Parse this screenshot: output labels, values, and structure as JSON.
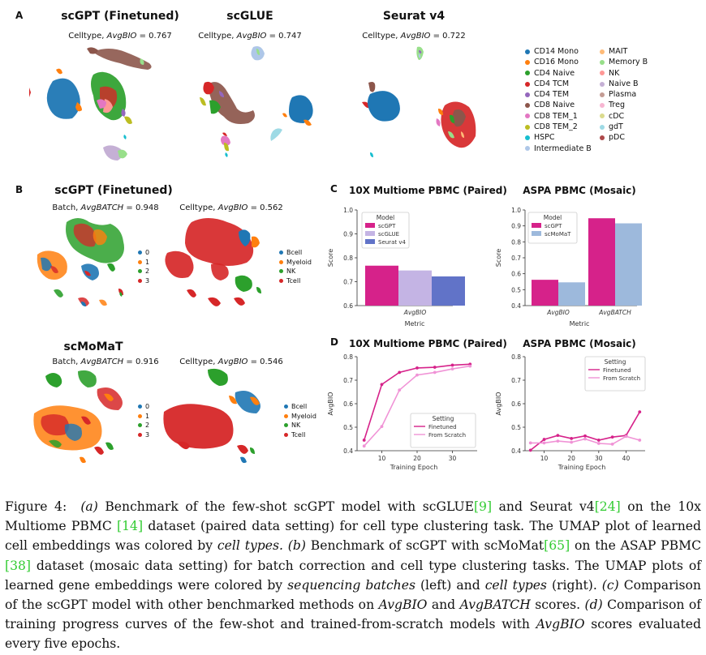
{
  "panel_a": {
    "letter": "A",
    "plots": [
      {
        "title": "scGPT (Finetuned)",
        "metric_prefix": "Celltype, ",
        "metric_name": "AvgBIO",
        "metric_value": " = 0.767"
      },
      {
        "title": "scGLUE",
        "metric_prefix": "Celltype, ",
        "metric_name": "AvgBIO",
        "metric_value": " = 0.747"
      },
      {
        "title": "Seurat v4",
        "metric_prefix": "Celltype, ",
        "metric_name": "AvgBIO",
        "metric_value": " = 0.722"
      }
    ],
    "legend": [
      {
        "label": "CD14 Mono",
        "color": "#1f77b4"
      },
      {
        "label": "CD16 Mono",
        "color": "#ff7f0e"
      },
      {
        "label": "CD4 Naive",
        "color": "#2ca02c"
      },
      {
        "label": "CD4 TCM",
        "color": "#d62728"
      },
      {
        "label": "CD4 TEM",
        "color": "#9467bd"
      },
      {
        "label": "CD8 Naive",
        "color": "#8c564b"
      },
      {
        "label": "CD8 TEM_1",
        "color": "#e377c2"
      },
      {
        "label": "CD8 TEM_2",
        "color": "#bcbd22"
      },
      {
        "label": "HSPC",
        "color": "#17becf"
      },
      {
        "label": "Intermediate B",
        "color": "#aec7e8"
      },
      {
        "label": "MAIT",
        "color": "#ffbb78"
      },
      {
        "label": "Memory B",
        "color": "#98df8a"
      },
      {
        "label": "NK",
        "color": "#ff9896"
      },
      {
        "label": "Naive B",
        "color": "#c5b0d5"
      },
      {
        "label": "Plasma",
        "color": "#c49c94"
      },
      {
        "label": "Treg",
        "color": "#f7b6d2"
      },
      {
        "label": "cDC",
        "color": "#dbdb8d"
      },
      {
        "label": "gdT",
        "color": "#9edae5"
      },
      {
        "label": "pDC",
        "color": "#ad494a"
      }
    ]
  },
  "panel_b": {
    "letter": "B",
    "rows": [
      {
        "title": "scGPT (Finetuned)",
        "left_metric": {
          "prefix": "Batch, ",
          "name": "AvgBATCH",
          "value": " = 0.948"
        },
        "right_metric": {
          "prefix": "Celltype, ",
          "name": "AvgBIO",
          "value": " = 0.562"
        }
      },
      {
        "title": "scMoMaT",
        "left_metric": {
          "prefix": "Batch, ",
          "name": "AvgBATCH",
          "value": " = 0.916"
        },
        "right_metric": {
          "prefix": "Celltype, ",
          "name": "AvgBIO",
          "value": " = 0.546"
        }
      }
    ],
    "batch_legend": [
      {
        "label": "0",
        "color": "#1f77b4"
      },
      {
        "label": "1",
        "color": "#ff7f0e"
      },
      {
        "label": "2",
        "color": "#2ca02c"
      },
      {
        "label": "3",
        "color": "#d62728"
      }
    ],
    "celltype_legend": [
      {
        "label": "Bcell",
        "color": "#1f77b4"
      },
      {
        "label": "Myeloid",
        "color": "#ff7f0e"
      },
      {
        "label": "NK",
        "color": "#2ca02c"
      },
      {
        "label": "Tcell",
        "color": "#d62728"
      }
    ]
  },
  "panel_c": {
    "letter": "C"
  },
  "panel_d": {
    "letter": "D"
  },
  "chart_data": [
    {
      "type": "bar",
      "title": "10X Multiome PBMC (Paired)",
      "categories": [
        "AvgBIO"
      ],
      "series": [
        {
          "name": "scGPT",
          "values": [
            0.767
          ],
          "color": "#d6228a"
        },
        {
          "name": "scGLUE",
          "values": [
            0.747
          ],
          "color": "#c4b4e4"
        },
        {
          "name": "Seurat v4",
          "values": [
            0.722
          ],
          "color": "#6173c8"
        }
      ],
      "xlabel": "Metric",
      "ylabel": "Score",
      "ylim": [
        0.6,
        1.0
      ],
      "yticks": [
        "0.6",
        "0.7",
        "0.8",
        "0.9",
        "1.0"
      ],
      "legend_title": "Model",
      "legend_position": "top-left"
    },
    {
      "type": "bar",
      "title": "ASPA PBMC (Mosaic)",
      "categories": [
        "AvgBIO",
        "AvgBATCH"
      ],
      "series": [
        {
          "name": "scGPT",
          "values": [
            0.562,
            0.948
          ],
          "color": "#d6228a"
        },
        {
          "name": "scMoMaT",
          "values": [
            0.546,
            0.916
          ],
          "color": "#9db9dc"
        }
      ],
      "xlabel": "Metric",
      "ylabel": "Score",
      "ylim": [
        0.4,
        1.0
      ],
      "yticks": [
        "0.4",
        "0.5",
        "0.6",
        "0.7",
        "0.8",
        "0.9",
        "1.0"
      ],
      "legend_title": "Model",
      "legend_position": "top-left"
    },
    {
      "type": "line",
      "title": "10X Multiome PBMC (Paired)",
      "x": [
        5,
        10,
        15,
        20,
        25,
        30,
        35
      ],
      "series": [
        {
          "name": "Finetuned",
          "values": [
            0.445,
            0.682,
            0.733,
            0.752,
            0.755,
            0.764,
            0.768
          ],
          "color": "#d6228a"
        },
        {
          "name": "From Scratch",
          "values": [
            0.42,
            0.503,
            0.658,
            0.722,
            0.733,
            0.748,
            0.76
          ],
          "color": "#f093d6"
        }
      ],
      "xlabel": "Training Epoch",
      "ylabel": "AvgBIO",
      "xlim": [
        3,
        37
      ],
      "ylim": [
        0.4,
        0.8
      ],
      "xticks": [
        "10",
        "20",
        "30"
      ],
      "yticks": [
        "0.4",
        "0.5",
        "0.6",
        "0.7",
        "0.8"
      ],
      "legend_title": "Setting",
      "legend_position": "bottom-right"
    },
    {
      "type": "line",
      "title": "ASPA PBMC (Mosaic)",
      "x": [
        5,
        10,
        15,
        20,
        25,
        30,
        35,
        40,
        45
      ],
      "series": [
        {
          "name": "Finetuned",
          "values": [
            0.402,
            0.448,
            0.465,
            0.452,
            0.463,
            0.445,
            0.458,
            0.465,
            0.565
          ],
          "color": "#d6228a"
        },
        {
          "name": "From Scratch",
          "values": [
            0.433,
            0.433,
            0.441,
            0.436,
            0.45,
            0.431,
            0.428,
            0.461,
            0.445
          ],
          "color": "#f093d6"
        }
      ],
      "xlabel": "Training Epoch",
      "ylabel": "AvgBIO",
      "xlim": [
        3,
        47
      ],
      "ylim": [
        0.4,
        0.8
      ],
      "xticks": [
        "10",
        "20",
        "30",
        "40"
      ],
      "yticks": [
        "0.4",
        "0.5",
        "0.6",
        "0.7",
        "0.8"
      ],
      "legend_title": "Setting",
      "legend_position": "top-right"
    }
  ],
  "caption": {
    "label": "Figure 4:",
    "a_tag": "(a)",
    "a_text_1": " Benchmark of the few-shot scGPT model with scGLUE",
    "ref_1": "[9]",
    "a_text_2": " and Seurat v4",
    "ref_2": "[24]",
    "a_text_3": " on the 10x Multiome PBMC ",
    "ref_3": "[14]",
    "a_text_4": " dataset (paired data setting) for cell type clustering task. The UMAP plot of learned cell embeddings was colored by ",
    "a_em": "cell types.",
    "b_tag": "(b)",
    "b_text_1": " Benchmark of scGPT with scMoMat",
    "ref_4": "[65]",
    "b_text_2": " on the ASAP PBMC ",
    "ref_5": "[38]",
    "b_text_3": " dataset (mosaic data setting) for batch correction and cell type clustering tasks. The UMAP plots of learned gene embeddings were colored by ",
    "b_em_1": "sequencing batches",
    "b_text_4": " (left) and ",
    "b_em_2": "cell types",
    "b_text_5": " (right). ",
    "c_tag": "(c)",
    "c_text_1": " Comparison of the scGPT model with other benchmarked methods on ",
    "c_em_1": "AvgBIO",
    "c_text_2": " and ",
    "c_em_2": "AvgBATCH",
    "c_text_3": " scores. ",
    "d_tag": "(d)",
    "d_text_1": " Comparison of training progress curves of the few-shot and trained-from-scratch models with ",
    "d_em": "AvgBIO",
    "d_text_2": " scores evaluated every five epochs."
  }
}
